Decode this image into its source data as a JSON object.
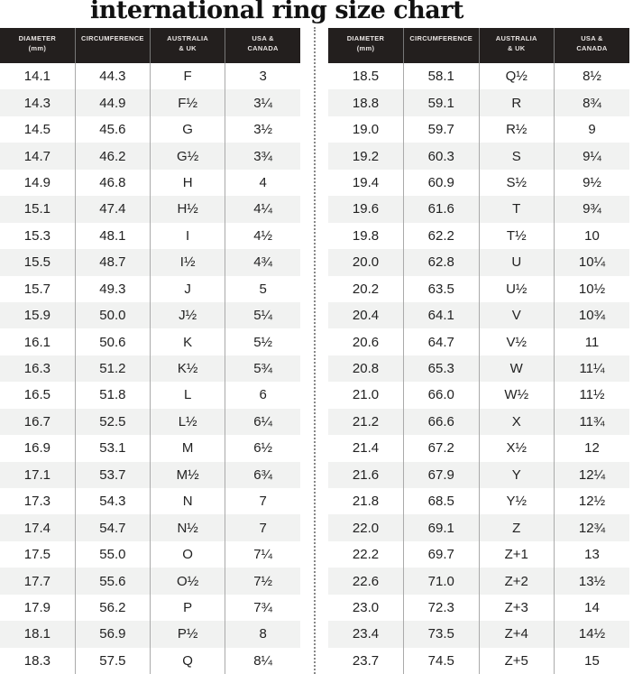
{
  "title": "international ring size chart",
  "headers": [
    "DIAMETER\n(mm)",
    "CIRCUMFERENCE",
    "AUSTRALIA\n& UK",
    "USA &\nCANADA"
  ],
  "left_rows": [
    [
      "14.1",
      "44.3",
      "F",
      "3"
    ],
    [
      "14.3",
      "44.9",
      "F½",
      "3¼"
    ],
    [
      "14.5",
      "45.6",
      "G",
      "3½"
    ],
    [
      "14.7",
      "46.2",
      "G½",
      "3¾"
    ],
    [
      "14.9",
      "46.8",
      "H",
      "4"
    ],
    [
      "15.1",
      "47.4",
      "H½",
      "4¼"
    ],
    [
      "15.3",
      "48.1",
      "I",
      "4½"
    ],
    [
      "15.5",
      "48.7",
      "I½",
      "4¾"
    ],
    [
      "15.7",
      "49.3",
      "J",
      "5"
    ],
    [
      "15.9",
      "50.0",
      "J½",
      "5¼"
    ],
    [
      "16.1",
      "50.6",
      "K",
      "5½"
    ],
    [
      "16.3",
      "51.2",
      "K½",
      "5¾"
    ],
    [
      "16.5",
      "51.8",
      "L",
      "6"
    ],
    [
      "16.7",
      "52.5",
      "L½",
      "6¼"
    ],
    [
      "16.9",
      "53.1",
      "M",
      "6½"
    ],
    [
      "17.1",
      "53.7",
      "M½",
      "6¾"
    ],
    [
      "17.3",
      "54.3",
      "N",
      "7"
    ],
    [
      "17.4",
      "54.7",
      "N½",
      "7"
    ],
    [
      "17.5",
      "55.0",
      "O",
      "7¼"
    ],
    [
      "17.7",
      "55.6",
      "O½",
      "7½"
    ],
    [
      "17.9",
      "56.2",
      "P",
      "7¾"
    ],
    [
      "18.1",
      "56.9",
      "P½",
      "8"
    ],
    [
      "18.3",
      "57.5",
      "Q",
      "8¼"
    ]
  ],
  "right_rows": [
    [
      "18.5",
      "58.1",
      "Q½",
      "8½"
    ],
    [
      "18.8",
      "59.1",
      "R",
      "8¾"
    ],
    [
      "19.0",
      "59.7",
      "R½",
      "9"
    ],
    [
      "19.2",
      "60.3",
      "S",
      "9¼"
    ],
    [
      "19.4",
      "60.9",
      "S½",
      "9½"
    ],
    [
      "19.6",
      "61.6",
      "T",
      "9¾"
    ],
    [
      "19.8",
      "62.2",
      "T½",
      "10"
    ],
    [
      "20.0",
      "62.8",
      "U",
      "10¼"
    ],
    [
      "20.2",
      "63.5",
      "U½",
      "10½"
    ],
    [
      "20.4",
      "64.1",
      "V",
      "10¾"
    ],
    [
      "20.6",
      "64.7",
      "V½",
      "11"
    ],
    [
      "20.8",
      "65.3",
      "W",
      "11¼"
    ],
    [
      "21.0",
      "66.0",
      "W½",
      "11½"
    ],
    [
      "21.2",
      "66.6",
      "X",
      "11¾"
    ],
    [
      "21.4",
      "67.2",
      "X½",
      "12"
    ],
    [
      "21.6",
      "67.9",
      "Y",
      "12¼"
    ],
    [
      "21.8",
      "68.5",
      "Y½",
      "12½"
    ],
    [
      "22.0",
      "69.1",
      "Z",
      "12¾"
    ],
    [
      "22.2",
      "69.7",
      "Z+1",
      "13"
    ],
    [
      "22.6",
      "71.0",
      "Z+2",
      "13½"
    ],
    [
      "23.0",
      "72.3",
      "Z+3",
      "14"
    ],
    [
      "23.4",
      "73.5",
      "Z+4",
      "14½"
    ],
    [
      "23.7",
      "74.5",
      "Z+5",
      "15"
    ]
  ],
  "colors": {
    "header_bg": "#231f1e",
    "alt_row": "#f1f2f1"
  }
}
